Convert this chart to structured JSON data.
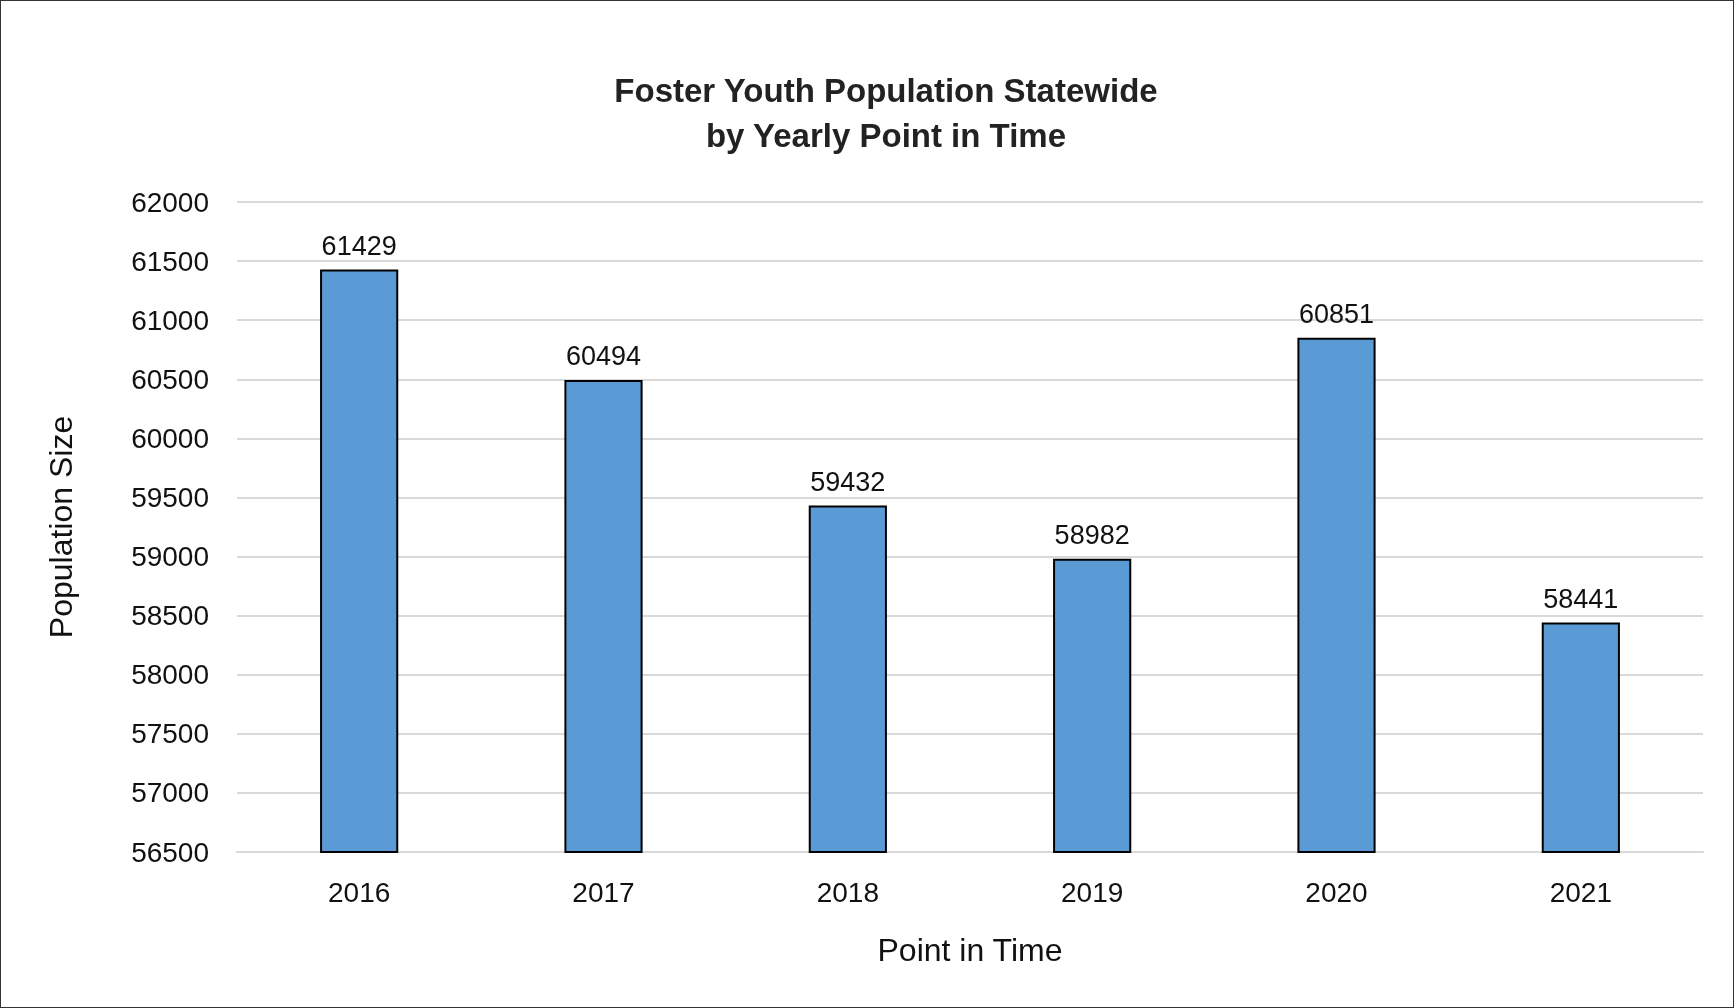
{
  "chart_data": {
    "type": "bar",
    "title": "Foster Youth Population Statewide\nby Yearly Point in Time",
    "xlabel": "Point in Time",
    "ylabel": "Population Size",
    "categories": [
      "2016",
      "2017",
      "2018",
      "2019",
      "2020",
      "2021"
    ],
    "values": [
      61429,
      60494,
      59432,
      58982,
      60851,
      58441
    ],
    "color": "#5b9bd5",
    "ylim": [
      56500,
      62000
    ],
    "yticks": [
      56500,
      57000,
      57500,
      58000,
      58500,
      59000,
      59500,
      60000,
      60500,
      61000,
      61500,
      62000
    ],
    "grid": "y",
    "data_labels": true
  }
}
